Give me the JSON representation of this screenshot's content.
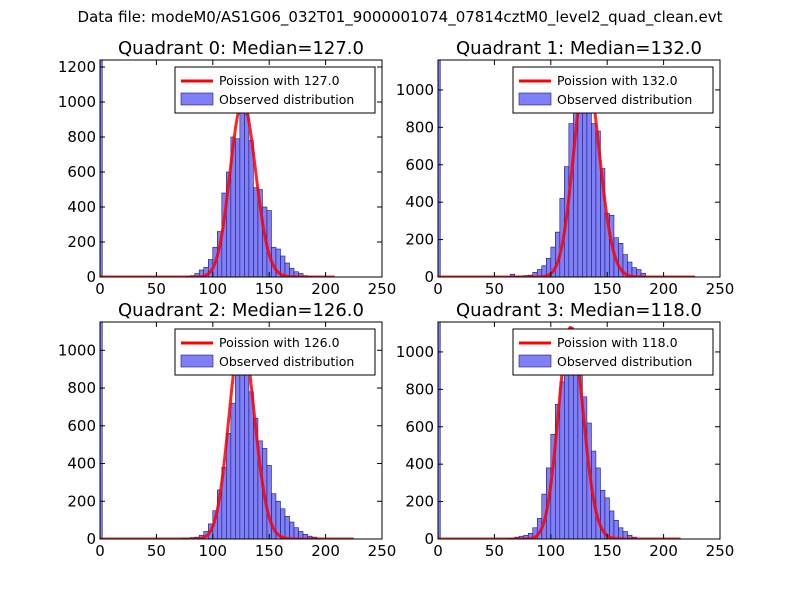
{
  "suptitle": "Data file: modeM0/AS1G06_032T01_9000001074_07814cztM0_level2_quad_clean.evt",
  "colors": {
    "bar_fill": "#7f7ff7",
    "bar_edge": "#1a1a6e",
    "line": "#ff0000",
    "axis": "#000000"
  },
  "chart_data": [
    {
      "type": "bar",
      "title": "Quadrant 0: Median=127.0",
      "xlim": [
        0,
        250
      ],
      "ylim": [
        0,
        1240
      ],
      "xticks": [
        0,
        50,
        100,
        150,
        200,
        250
      ],
      "yticks": [
        0,
        200,
        400,
        600,
        800,
        1000,
        1200
      ],
      "legend": [
        "Poission with 127.0",
        "Observed distribution"
      ],
      "legend_position": "top-right",
      "poisson_lambda": 127.0,
      "poisson_peak": 1000,
      "poisson_range": [
        0,
        208
      ],
      "spike_at_zero": 1240,
      "bin_width": 4,
      "bins": [
        [
          76,
          3
        ],
        [
          80,
          8
        ],
        [
          84,
          20
        ],
        [
          88,
          40
        ],
        [
          92,
          55
        ],
        [
          96,
          100
        ],
        [
          100,
          170
        ],
        [
          104,
          260
        ],
        [
          108,
          480
        ],
        [
          112,
          600
        ],
        [
          116,
          800
        ],
        [
          120,
          790
        ],
        [
          124,
          1100
        ],
        [
          128,
          930
        ],
        [
          132,
          780
        ],
        [
          136,
          510
        ],
        [
          140,
          500
        ],
        [
          144,
          400
        ],
        [
          148,
          380
        ],
        [
          152,
          170
        ],
        [
          156,
          160
        ],
        [
          160,
          120
        ],
        [
          164,
          80
        ],
        [
          168,
          50
        ],
        [
          172,
          30
        ],
        [
          176,
          20
        ],
        [
          180,
          8
        ],
        [
          184,
          4
        ]
      ]
    },
    {
      "type": "bar",
      "title": "Quadrant 1: Median=132.0",
      "xlim": [
        0,
        250
      ],
      "ylim": [
        0,
        1160
      ],
      "xticks": [
        0,
        50,
        100,
        150,
        200,
        250
      ],
      "yticks": [
        0,
        200,
        400,
        600,
        800,
        1000
      ],
      "legend": [
        "Poission with 132.0",
        "Observed distribution"
      ],
      "legend_position": "top-right",
      "poisson_lambda": 132.0,
      "poisson_peak": 1090,
      "poisson_range": [
        0,
        228
      ],
      "spike_at_zero": 1160,
      "bin_width": 4,
      "bins": [
        [
          64,
          15
        ],
        [
          68,
          5
        ],
        [
          72,
          5
        ],
        [
          76,
          8
        ],
        [
          80,
          10
        ],
        [
          84,
          25
        ],
        [
          88,
          40
        ],
        [
          92,
          60
        ],
        [
          96,
          100
        ],
        [
          100,
          160
        ],
        [
          104,
          240
        ],
        [
          108,
          420
        ],
        [
          112,
          590
        ],
        [
          116,
          820
        ],
        [
          120,
          1000
        ],
        [
          124,
          1050
        ],
        [
          128,
          1060
        ],
        [
          132,
          920
        ],
        [
          136,
          820
        ],
        [
          140,
          780
        ],
        [
          144,
          580
        ],
        [
          148,
          340
        ],
        [
          152,
          330
        ],
        [
          156,
          210
        ],
        [
          160,
          180
        ],
        [
          164,
          120
        ],
        [
          168,
          80
        ],
        [
          172,
          50
        ],
        [
          176,
          40
        ],
        [
          180,
          20
        ]
      ]
    },
    {
      "type": "bar",
      "title": "Quadrant 2: Median=126.0",
      "xlim": [
        0,
        250
      ],
      "ylim": [
        0,
        1150
      ],
      "xticks": [
        0,
        50,
        100,
        150,
        200,
        250
      ],
      "yticks": [
        0,
        200,
        400,
        600,
        800,
        1000
      ],
      "legend": [
        "Poission with 126.0",
        "Observed distribution"
      ],
      "legend_position": "top-right",
      "poisson_lambda": 126.0,
      "poisson_peak": 1080,
      "poisson_range": [
        0,
        225
      ],
      "spike_at_zero": 1150,
      "bin_width": 4,
      "bins": [
        [
          72,
          5
        ],
        [
          76,
          5
        ],
        [
          80,
          8
        ],
        [
          84,
          10
        ],
        [
          88,
          20
        ],
        [
          92,
          40
        ],
        [
          96,
          80
        ],
        [
          100,
          150
        ],
        [
          104,
          260
        ],
        [
          108,
          380
        ],
        [
          112,
          560
        ],
        [
          116,
          720
        ],
        [
          120,
          900
        ],
        [
          124,
          1090
        ],
        [
          128,
          1040
        ],
        [
          132,
          780
        ],
        [
          136,
          640
        ],
        [
          140,
          520
        ],
        [
          144,
          480
        ],
        [
          148,
          390
        ],
        [
          152,
          240
        ],
        [
          156,
          200
        ],
        [
          160,
          160
        ],
        [
          164,
          120
        ],
        [
          168,
          90
        ],
        [
          172,
          60
        ],
        [
          176,
          40
        ],
        [
          180,
          25
        ],
        [
          184,
          15
        ],
        [
          188,
          10
        ],
        [
          192,
          5
        ]
      ]
    },
    {
      "type": "bar",
      "title": "Quadrant 3: Median=118.0",
      "xlim": [
        0,
        250
      ],
      "ylim": [
        0,
        1160
      ],
      "xticks": [
        0,
        50,
        100,
        150,
        200,
        250
      ],
      "yticks": [
        0,
        200,
        400,
        600,
        800,
        1000
      ],
      "legend": [
        "Poission with 118.0",
        "Observed distribution"
      ],
      "legend_position": "top-right",
      "poisson_lambda": 118.0,
      "poisson_peak": 1130,
      "poisson_range": [
        0,
        215
      ],
      "spike_at_zero": 1160,
      "bin_width": 4,
      "bins": [
        [
          60,
          3
        ],
        [
          64,
          5
        ],
        [
          68,
          10
        ],
        [
          72,
          15
        ],
        [
          76,
          20
        ],
        [
          80,
          30
        ],
        [
          84,
          60
        ],
        [
          88,
          110
        ],
        [
          92,
          240
        ],
        [
          96,
          380
        ],
        [
          100,
          560
        ],
        [
          104,
          720
        ],
        [
          108,
          840
        ],
        [
          112,
          1000
        ],
        [
          116,
          1130
        ],
        [
          120,
          990
        ],
        [
          124,
          880
        ],
        [
          128,
          760
        ],
        [
          132,
          620
        ],
        [
          136,
          470
        ],
        [
          140,
          380
        ],
        [
          144,
          260
        ],
        [
          148,
          220
        ],
        [
          152,
          150
        ],
        [
          156,
          100
        ],
        [
          160,
          60
        ],
        [
          164,
          40
        ],
        [
          168,
          20
        ],
        [
          172,
          10
        ]
      ]
    }
  ]
}
